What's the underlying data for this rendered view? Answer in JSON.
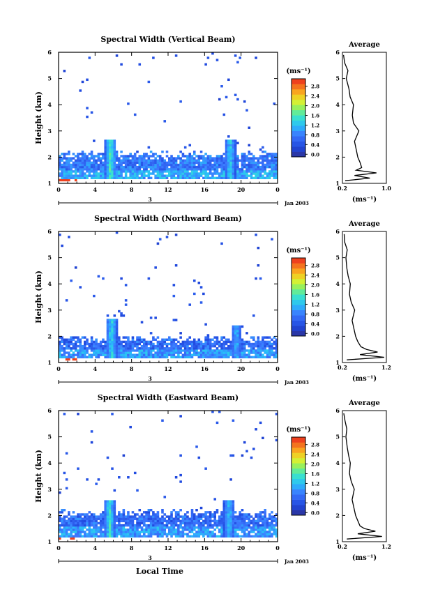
{
  "chart_data": [
    {
      "type": "heatmap",
      "title": "Spectral Width (Vertical Beam)",
      "xlabel": "",
      "ylabel": "Height (km)",
      "xlim": [
        0,
        24
      ],
      "ylim": [
        1,
        6
      ],
      "x_ticks": [
        "0",
        "4",
        "8",
        "12",
        "16",
        "20",
        "0"
      ],
      "y_ticks": [
        "1",
        "2",
        "3",
        "4",
        "5",
        "6"
      ],
      "date_axis": {
        "day_label": "3",
        "month_label": "Jan 2003"
      },
      "colorbar": {
        "unit": "(ms⁻¹)",
        "ticks": [
          "0.0",
          "0.4",
          "0.8",
          "1.2",
          "1.6",
          "2.0",
          "2.4",
          "2.8"
        ],
        "range": [
          0.0,
          3.0
        ]
      },
      "echo_band": {
        "base_km": 1.15,
        "top_km": 2.1,
        "typical_width": 0.8
      },
      "plumes": [
        {
          "hour": 5.7,
          "top_km": 2.7,
          "width": 1.9
        },
        {
          "hour": 18.8,
          "top_km": 2.7,
          "width": 1.6
        }
      ],
      "average_profile": {
        "title": "Average",
        "xlabel": "(ms⁻¹)",
        "x_ticks": [
          "0.2",
          "1.0"
        ],
        "xlim": [
          0.2,
          1.0
        ],
        "height_km": [
          1.1,
          1.2,
          1.3,
          1.4,
          1.5,
          1.6,
          1.8,
          2.0,
          2.3,
          2.6,
          3.0,
          3.3,
          3.6,
          4.0,
          4.3,
          4.6,
          5.0,
          5.3,
          5.6,
          5.9
        ],
        "width": [
          0.25,
          0.7,
          0.42,
          0.82,
          0.45,
          0.55,
          0.52,
          0.48,
          0.45,
          0.42,
          0.5,
          0.4,
          0.38,
          0.4,
          0.34,
          0.32,
          0.27,
          0.3,
          0.24,
          0.22
        ]
      }
    },
    {
      "type": "heatmap",
      "title": "Spectral Width (Northward Beam)",
      "xlabel": "",
      "ylabel": "Height (km)",
      "xlim": [
        0,
        24
      ],
      "ylim": [
        1,
        6
      ],
      "x_ticks": [
        "0",
        "4",
        "8",
        "12",
        "16",
        "20",
        "0"
      ],
      "y_ticks": [
        "1",
        "2",
        "3",
        "4",
        "5",
        "6"
      ],
      "date_axis": {
        "day_label": "3",
        "month_label": "Jan 2003"
      },
      "colorbar": {
        "unit": "(ms⁻¹)",
        "ticks": [
          "0.0",
          "0.4",
          "0.8",
          "1.2",
          "1.6",
          "2.0",
          "2.4",
          "2.8"
        ],
        "range": [
          0.0,
          3.0
        ]
      },
      "echo_band": {
        "base_km": 1.15,
        "top_km": 1.9,
        "typical_width": 0.7
      },
      "plumes": [
        {
          "hour": 5.8,
          "top_km": 2.7,
          "width": 1.7
        },
        {
          "hour": 19.5,
          "top_km": 2.4,
          "width": 1.4
        }
      ],
      "average_profile": {
        "title": "Average",
        "xlabel": "(ms⁻¹)",
        "x_ticks": [
          "0.2",
          "1.2"
        ],
        "xlim": [
          0.2,
          1.2
        ],
        "height_km": [
          1.1,
          1.2,
          1.3,
          1.4,
          1.5,
          1.6,
          1.8,
          2.0,
          2.3,
          2.6,
          3.0,
          3.3,
          3.6,
          4.0,
          4.3,
          4.6,
          5.0,
          5.3,
          5.6,
          5.9
        ],
        "width": [
          0.3,
          1.15,
          0.6,
          1.0,
          0.75,
          0.62,
          0.55,
          0.5,
          0.46,
          0.42,
          0.48,
          0.4,
          0.36,
          0.38,
          0.33,
          0.3,
          0.28,
          0.31,
          0.25,
          0.24
        ]
      }
    },
    {
      "type": "heatmap",
      "title": "Spectral Width (Eastward Beam)",
      "xlabel": "Local Time",
      "ylabel": "Height (km)",
      "xlim": [
        0,
        24
      ],
      "ylim": [
        1,
        6
      ],
      "x_ticks": [
        "0",
        "4",
        "8",
        "12",
        "16",
        "20",
        "0"
      ],
      "y_ticks": [
        "1",
        "2",
        "3",
        "4",
        "5",
        "6"
      ],
      "date_axis": {
        "day_label": "3",
        "month_label": "Jan 2003"
      },
      "colorbar": {
        "unit": "(ms⁻¹)",
        "ticks": [
          "0.0",
          "0.4",
          "0.8",
          "1.2",
          "1.6",
          "2.0",
          "2.4",
          "2.8"
        ],
        "range": [
          0.0,
          3.0
        ]
      },
      "echo_band": {
        "base_km": 1.2,
        "top_km": 2.1,
        "typical_width": 0.7
      },
      "plumes": [
        {
          "hour": 5.6,
          "top_km": 2.6,
          "width": 1.8
        },
        {
          "hour": 18.7,
          "top_km": 2.6,
          "width": 1.5
        }
      ],
      "average_profile": {
        "title": "Average",
        "xlabel": "(ms⁻¹)",
        "x_ticks": [
          "0.2",
          "1.2"
        ],
        "xlim": [
          0.2,
          1.2
        ],
        "height_km": [
          1.1,
          1.2,
          1.3,
          1.4,
          1.5,
          1.6,
          1.8,
          2.0,
          2.3,
          2.6,
          3.0,
          3.3,
          3.6,
          4.0,
          4.3,
          4.6,
          5.0,
          5.3,
          5.6,
          5.9
        ],
        "width": [
          0.3,
          1.1,
          0.55,
          0.95,
          0.7,
          0.6,
          0.55,
          0.5,
          0.46,
          0.42,
          0.47,
          0.4,
          0.36,
          0.38,
          0.34,
          0.31,
          0.28,
          0.3,
          0.26,
          0.23
        ]
      }
    }
  ]
}
